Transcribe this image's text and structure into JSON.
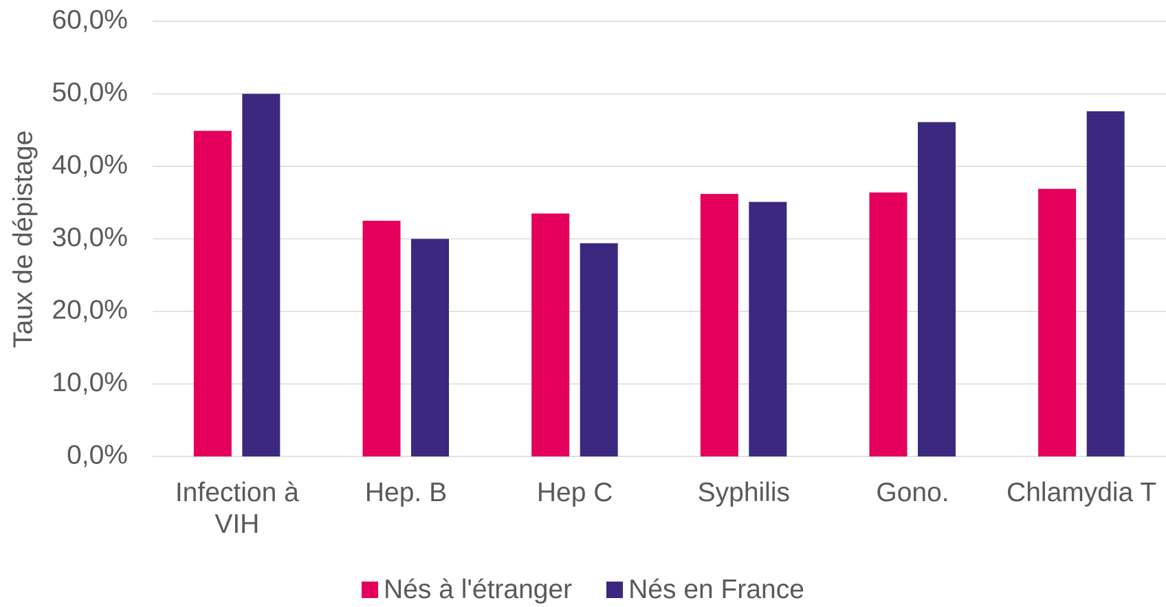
{
  "chart_data": {
    "type": "bar",
    "y_label": "Taux de dépistage",
    "categories": [
      "Infection à VIH",
      "Hep. B",
      "Hep C",
      "Syphilis",
      "Gono.",
      "Chlamydia T"
    ],
    "series": [
      {
        "name": "Nés à l'étranger",
        "color": "#e4005a",
        "values": [
          44.9,
          32.5,
          33.5,
          36.2,
          36.4,
          36.9
        ]
      },
      {
        "name": "Nés en France",
        "color": "#3b287f",
        "values": [
          50.0,
          30.0,
          29.4,
          35.1,
          46.1,
          47.6
        ]
      }
    ],
    "ylim": [
      0,
      60
    ],
    "yticks": [
      {
        "value": 0,
        "label": "0,0%"
      },
      {
        "value": 10,
        "label": "10,0%"
      },
      {
        "value": 20,
        "label": "20,0%"
      },
      {
        "value": 30,
        "label": "30,0%"
      },
      {
        "value": 40,
        "label": "40,0%"
      },
      {
        "value": 50,
        "label": "50,0%"
      },
      {
        "value": 60,
        "label": "60,0%"
      }
    ],
    "grid": true
  }
}
